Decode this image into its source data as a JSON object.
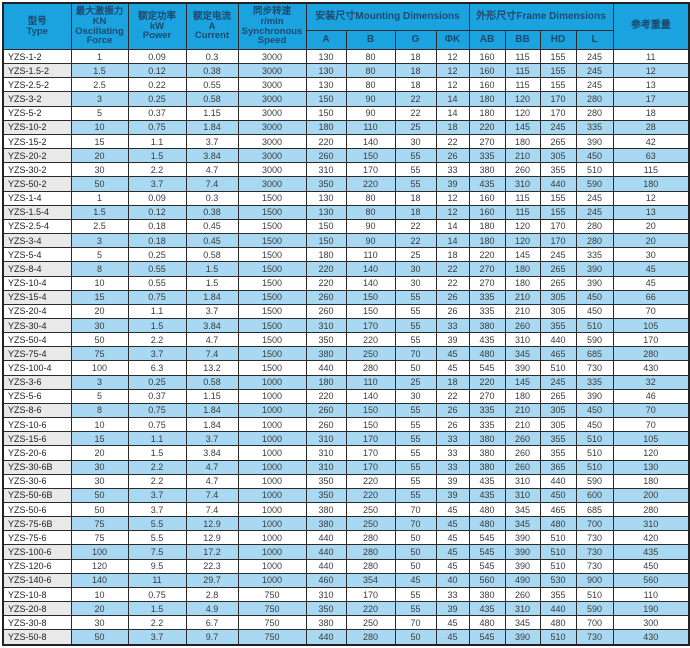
{
  "colors": {
    "header_bg": "#1ba3e0",
    "header_text": "#1d4a6e",
    "stripe_blue": "#a9d9f2",
    "stripe_gray": "#e9e9e9"
  },
  "table": {
    "header": {
      "type": "型号\nType",
      "force": "最大激振力KN\nOscillating\nForce",
      "power": "额定功率\nkW\nPower",
      "current": "额定电流\nA\nCurrent",
      "speed": "同步转速\nr/min\nSynchronous\nSpeed",
      "mounting_group": "安装尺寸Mounting Dimensions",
      "frame_group": "外形尺寸Frame Dimensions",
      "weight": "参考重量",
      "sub": [
        "A",
        "B",
        "G",
        "ΦK",
        "AB",
        "BB",
        "HD",
        "L"
      ]
    },
    "rows": [
      [
        "YZS-1-2",
        "1",
        "0.09",
        "0.3",
        "3000",
        "130",
        "80",
        "18",
        "12",
        "160",
        "115",
        "155",
        "245",
        "11"
      ],
      [
        "YZS-1.5-2",
        "1.5",
        "0.12",
        "0.38",
        "3000",
        "130",
        "80",
        "18",
        "12",
        "160",
        "115",
        "155",
        "245",
        "12"
      ],
      [
        "YZS-2.5-2",
        "2.5",
        "0.22",
        "0.55",
        "3000",
        "130",
        "80",
        "18",
        "12",
        "160",
        "115",
        "155",
        "245",
        "13"
      ],
      [
        "YZS-3-2",
        "3",
        "0.25",
        "0.58",
        "3000",
        "150",
        "90",
        "22",
        "14",
        "180",
        "120",
        "170",
        "280",
        "17"
      ],
      [
        "YZS-5-2",
        "5",
        "0.37",
        "1.15",
        "3000",
        "150",
        "90",
        "22",
        "14",
        "180",
        "120",
        "170",
        "280",
        "18"
      ],
      [
        "YZS-10-2",
        "10",
        "0.75",
        "1.84",
        "3000",
        "180",
        "110",
        "25",
        "18",
        "220",
        "145",
        "245",
        "335",
        "28"
      ],
      [
        "YZS-15-2",
        "15",
        "1.1",
        "3.7",
        "3000",
        "220",
        "140",
        "30",
        "22",
        "270",
        "180",
        "265",
        "390",
        "42"
      ],
      [
        "YZS-20-2",
        "20",
        "1.5",
        "3.84",
        "3000",
        "260",
        "150",
        "55",
        "26",
        "335",
        "210",
        "305",
        "450",
        "63"
      ],
      [
        "YZS-30-2",
        "30",
        "2.2",
        "4.7",
        "3000",
        "310",
        "170",
        "55",
        "33",
        "380",
        "260",
        "355",
        "510",
        "115"
      ],
      [
        "YZS-50-2",
        "50",
        "3.7",
        "7.4",
        "3000",
        "350",
        "220",
        "55",
        "39",
        "435",
        "310",
        "440",
        "590",
        "180"
      ],
      [
        "YZS-1-4",
        "1",
        "0.09",
        "0.3",
        "1500",
        "130",
        "80",
        "18",
        "12",
        "160",
        "115",
        "155",
        "245",
        "12"
      ],
      [
        "YZS-1.5-4",
        "1.5",
        "0.12",
        "0.38",
        "1500",
        "130",
        "80",
        "18",
        "12",
        "160",
        "115",
        "155",
        "245",
        "13"
      ],
      [
        "YZS-2.5-4",
        "2.5",
        "0.18",
        "0.45",
        "1500",
        "150",
        "90",
        "22",
        "14",
        "180",
        "120",
        "170",
        "280",
        "20"
      ],
      [
        "YZS-3-4",
        "3",
        "0.18",
        "0.45",
        "1500",
        "150",
        "90",
        "22",
        "14",
        "180",
        "120",
        "170",
        "280",
        "20"
      ],
      [
        "YZS-5-4",
        "5",
        "0.25",
        "0.58",
        "1500",
        "180",
        "110",
        "25",
        "18",
        "220",
        "145",
        "245",
        "335",
        "30"
      ],
      [
        "YZS-8-4",
        "8",
        "0.55",
        "1.5",
        "1500",
        "220",
        "140",
        "30",
        "22",
        "270",
        "180",
        "265",
        "390",
        "45"
      ],
      [
        "YZS-10-4",
        "10",
        "0.55",
        "1.5",
        "1500",
        "220",
        "140",
        "30",
        "22",
        "270",
        "180",
        "265",
        "390",
        "45"
      ],
      [
        "YZS-15-4",
        "15",
        "0.75",
        "1.84",
        "1500",
        "260",
        "150",
        "55",
        "26",
        "335",
        "210",
        "305",
        "450",
        "66"
      ],
      [
        "YZS-20-4",
        "20",
        "1.1",
        "3.7",
        "1500",
        "260",
        "150",
        "55",
        "26",
        "335",
        "210",
        "305",
        "450",
        "70"
      ],
      [
        "YZS-30-4",
        "30",
        "1.5",
        "3.84",
        "1500",
        "310",
        "170",
        "55",
        "33",
        "380",
        "260",
        "355",
        "510",
        "105"
      ],
      [
        "YZS-50-4",
        "50",
        "2.2",
        "4.7",
        "1500",
        "350",
        "220",
        "55",
        "39",
        "435",
        "310",
        "440",
        "590",
        "170"
      ],
      [
        "YZS-75-4",
        "75",
        "3.7",
        "7.4",
        "1500",
        "380",
        "250",
        "70",
        "45",
        "480",
        "345",
        "465",
        "685",
        "280"
      ],
      [
        "YZS-100-4",
        "100",
        "6.3",
        "13.2",
        "1500",
        "440",
        "280",
        "50",
        "45",
        "545",
        "390",
        "510",
        "730",
        "430"
      ],
      [
        "YZS-3-6",
        "3",
        "0.25",
        "0.58",
        "1000",
        "180",
        "110",
        "25",
        "18",
        "220",
        "145",
        "245",
        "335",
        "32"
      ],
      [
        "YZS-5-6",
        "5",
        "0.37",
        "1.15",
        "1000",
        "220",
        "140",
        "30",
        "22",
        "270",
        "180",
        "265",
        "390",
        "46"
      ],
      [
        "YZS-8-6",
        "8",
        "0.75",
        "1.84",
        "1000",
        "260",
        "150",
        "55",
        "26",
        "335",
        "210",
        "305",
        "450",
        "70"
      ],
      [
        "YZS-10-6",
        "10",
        "0.75",
        "1.84",
        "1000",
        "260",
        "150",
        "55",
        "26",
        "335",
        "210",
        "305",
        "450",
        "70"
      ],
      [
        "YZS-15-6",
        "15",
        "1.1",
        "3.7",
        "1000",
        "310",
        "170",
        "55",
        "33",
        "380",
        "260",
        "355",
        "510",
        "105"
      ],
      [
        "YZS-20-6",
        "20",
        "1.5",
        "3.84",
        "1000",
        "310",
        "170",
        "55",
        "33",
        "380",
        "260",
        "355",
        "510",
        "120"
      ],
      [
        "YZS-30-6B",
        "30",
        "2.2",
        "4.7",
        "1000",
        "310",
        "170",
        "55",
        "33",
        "380",
        "260",
        "365",
        "510",
        "130"
      ],
      [
        "YZS-30-6",
        "30",
        "2.2",
        "4.7",
        "1000",
        "350",
        "220",
        "55",
        "39",
        "435",
        "310",
        "440",
        "590",
        "180"
      ],
      [
        "YZS-50-6B",
        "50",
        "3.7",
        "7.4",
        "1000",
        "350",
        "220",
        "55",
        "39",
        "435",
        "310",
        "450",
        "600",
        "200"
      ],
      [
        "YZS-50-6",
        "50",
        "3.7",
        "7.4",
        "1000",
        "380",
        "250",
        "70",
        "45",
        "480",
        "345",
        "465",
        "685",
        "280"
      ],
      [
        "YZS-75-6B",
        "75",
        "5.5",
        "12.9",
        "1000",
        "380",
        "250",
        "70",
        "45",
        "480",
        "345",
        "480",
        "700",
        "310"
      ],
      [
        "YZS-75-6",
        "75",
        "5.5",
        "12.9",
        "1000",
        "440",
        "280",
        "50",
        "45",
        "545",
        "390",
        "510",
        "730",
        "420"
      ],
      [
        "YZS-100-6",
        "100",
        "7.5",
        "17.2",
        "1000",
        "440",
        "280",
        "50",
        "45",
        "545",
        "390",
        "510",
        "730",
        "435"
      ],
      [
        "YZS-120-6",
        "120",
        "9.5",
        "22.3",
        "1000",
        "440",
        "280",
        "50",
        "45",
        "545",
        "390",
        "510",
        "730",
        "450"
      ],
      [
        "YZS-140-6",
        "140",
        "11",
        "29.7",
        "1000",
        "460",
        "354",
        "45",
        "40",
        "560",
        "490",
        "530",
        "900",
        "560"
      ],
      [
        "YZS-10-8",
        "10",
        "0.75",
        "2.8",
        "750",
        "310",
        "170",
        "55",
        "33",
        "380",
        "260",
        "355",
        "510",
        "110"
      ],
      [
        "YZS-20-8",
        "20",
        "1.5",
        "4.9",
        "750",
        "350",
        "220",
        "55",
        "39",
        "435",
        "310",
        "440",
        "590",
        "190"
      ],
      [
        "YZS-30-8",
        "30",
        "2.2",
        "6.7",
        "750",
        "380",
        "250",
        "70",
        "45",
        "480",
        "345",
        "480",
        "700",
        "300"
      ],
      [
        "YZS-50-8",
        "50",
        "3.7",
        "9.7",
        "750",
        "440",
        "280",
        "50",
        "45",
        "545",
        "390",
        "510",
        "730",
        "430"
      ]
    ]
  }
}
